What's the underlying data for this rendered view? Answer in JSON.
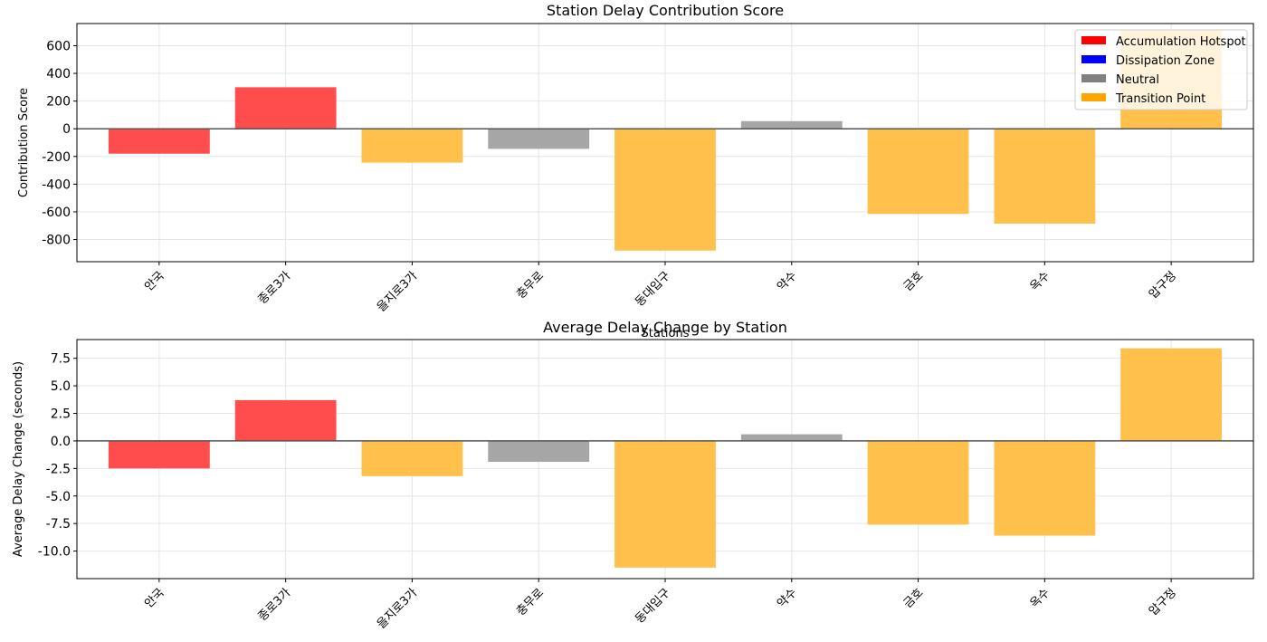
{
  "chart_data": [
    {
      "type": "bar",
      "title": "Station Delay Contribution Score",
      "xlabel": "Stations",
      "ylabel": "Contribution Score",
      "categories": [
        "안국",
        "종로3가",
        "을지로3가",
        "충무로",
        "동대입구",
        "약수",
        "금호",
        "옥수",
        "압구정"
      ],
      "values": [
        -180,
        300,
        -245,
        -145,
        -880,
        55,
        -615,
        -685,
        710
      ],
      "bar_class": [
        "Accumulation Hotspot",
        "Accumulation Hotspot",
        "Transition Point",
        "Neutral",
        "Transition Point",
        "Neutral",
        "Transition Point",
        "Transition Point",
        "Transition Point"
      ],
      "ylim": [
        -960,
        760
      ],
      "yticks": [
        600,
        400,
        200,
        0,
        -200,
        -400,
        -600,
        -800
      ],
      "ytick_labels": [
        "600",
        "400",
        "200",
        "0",
        "-200",
        "-400",
        "-600",
        "-800"
      ],
      "grid": true,
      "legend": {
        "placement": "top-right",
        "entries": [
          {
            "label": "Accumulation Hotspot",
            "color": "#ff0000"
          },
          {
            "label": "Dissipation Zone",
            "color": "#0000ff"
          },
          {
            "label": "Neutral",
            "color": "#808080"
          },
          {
            "label": "Transition Point",
            "color": "#ffa500"
          }
        ]
      }
    },
    {
      "type": "bar",
      "title": "Average Delay Change by Station",
      "xlabel": "",
      "ylabel": "Average Delay Change (seconds)",
      "categories": [
        "안국",
        "종로3가",
        "을지로3가",
        "충무로",
        "동대입구",
        "약수",
        "금호",
        "옥수",
        "압구정"
      ],
      "values": [
        -2.5,
        3.7,
        -3.2,
        -1.9,
        -11.5,
        0.6,
        -7.6,
        -8.6,
        8.4
      ],
      "bar_class": [
        "Accumulation Hotspot",
        "Accumulation Hotspot",
        "Transition Point",
        "Neutral",
        "Transition Point",
        "Neutral",
        "Transition Point",
        "Transition Point",
        "Transition Point"
      ],
      "ylim": [
        -12.5,
        9.2
      ],
      "yticks": [
        7.5,
        5.0,
        2.5,
        0.0,
        -2.5,
        -5.0,
        -7.5,
        -10.0
      ],
      "ytick_labels": [
        "7.5",
        "5.0",
        "2.5",
        "0.0",
        "-2.5",
        "-5.0",
        "-7.5",
        "-10.0"
      ],
      "grid": true
    }
  ],
  "colors": {
    "Accumulation Hotspot": "#ff4c4c",
    "Dissipation Zone": "#4c4cff",
    "Neutral": "#a6a6a6",
    "Transition Point": "#ffc04c"
  }
}
